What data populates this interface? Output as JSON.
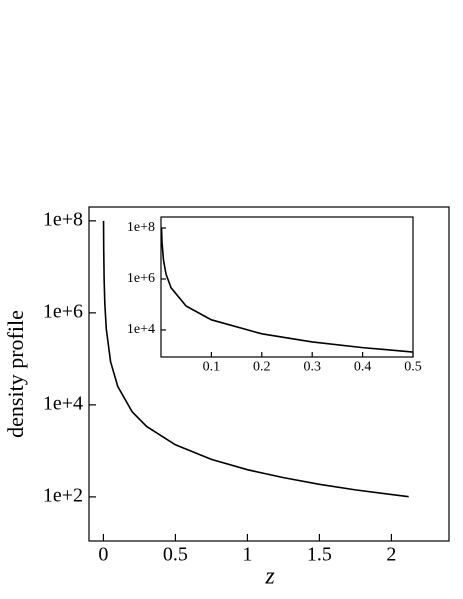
{
  "chart_data": [
    {
      "type": "line",
      "y_label": "density profile",
      "x_label": "z",
      "log_y": true,
      "x": [
        0.001,
        0.002,
        0.005,
        0.01,
        0.02,
        0.05,
        0.1,
        0.2,
        0.3,
        0.5,
        0.75,
        1,
        1.25,
        1.5,
        1.75,
        2.12
      ],
      "series": [
        {
          "color": "#000000",
          "values": [
            100000000,
            28000000,
            5400000,
            1550000,
            450000,
            86000,
            25000,
            7060,
            3400,
            1360,
            655,
            390,
            262,
            188,
            142,
            101
          ]
        }
      ],
      "xlim": [
        -0.1,
        2.4
      ],
      "ylim": [
        11,
        200000000
      ],
      "xticks": [
        0,
        0.5,
        1,
        1.5,
        2
      ],
      "yticks": [
        {
          "value": 100,
          "label": "1e+2"
        },
        {
          "value": 10000,
          "label": "1e+4"
        },
        {
          "value": 1000000,
          "label": "1e+6"
        },
        {
          "value": 100000000,
          "label": "1e+8"
        }
      ]
    },
    {
      "type": "line",
      "log_y": true,
      "x": [
        0.001,
        0.002,
        0.005,
        0.01,
        0.02,
        0.05,
        0.1,
        0.2,
        0.3,
        0.4,
        0.5
      ],
      "series": [
        {
          "color": "#000000",
          "values": [
            100000000,
            28000000,
            5400000,
            1550000,
            450000,
            86000,
            25000,
            7060,
            3400,
            2030,
            1360
          ]
        }
      ],
      "xlim": [
        0,
        0.5
      ],
      "ylim": [
        870,
        270000000
      ],
      "xticks": [
        0.1,
        0.2,
        0.3,
        0.4,
        0.5
      ],
      "yticks": [
        {
          "value": 10000,
          "label": "1e+4"
        },
        {
          "value": 1000000,
          "label": "1e+6"
        },
        {
          "value": 100000000,
          "label": "1e+8"
        }
      ]
    }
  ]
}
